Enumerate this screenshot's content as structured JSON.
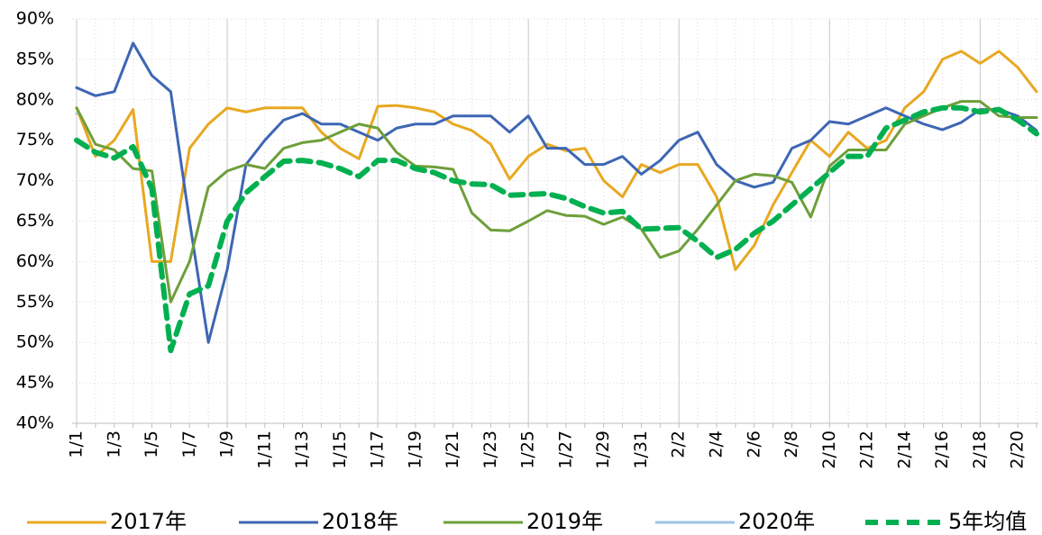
{
  "chart_data": {
    "type": "line",
    "categories": [
      "1/1",
      null,
      "1/3",
      null,
      "1/5",
      null,
      "1/7",
      null,
      "1/9",
      null,
      "1/11",
      null,
      "1/13",
      null,
      "1/15",
      null,
      "1/17",
      null,
      "1/19",
      null,
      "1/21",
      null,
      "1/23",
      null,
      "1/25",
      null,
      "1/27",
      null,
      "1/29",
      null,
      "1/31",
      null,
      "2/2",
      null,
      "2/4",
      null,
      "2/6",
      null,
      "2/8",
      null,
      "2/10",
      null,
      "2/12",
      null,
      "2/14",
      null,
      "2/16",
      null,
      "2/18",
      null,
      "2/20",
      null
    ],
    "series": [
      {
        "name": "2017年",
        "color": "#e8a820",
        "values": [
          79,
          73,
          75,
          78.8,
          60,
          60,
          74,
          77,
          79,
          78.5,
          79,
          79,
          79,
          76,
          74,
          72.7,
          79.2,
          79.3,
          79,
          78.5,
          77,
          76.2,
          74.5,
          70.2,
          73,
          74.5,
          73.7,
          74,
          70,
          68,
          72,
          71,
          72,
          72,
          68,
          59,
          62,
          67,
          71,
          75,
          73,
          76,
          74,
          75,
          79,
          81,
          85,
          86,
          84.5,
          86,
          84,
          81
        ]
      },
      {
        "name": "2018年",
        "color": "#3d66b4",
        "values": [
          81.5,
          80.5,
          81,
          87,
          83,
          81,
          65,
          50,
          59,
          72,
          75,
          77.5,
          78.3,
          77,
          77,
          76,
          75,
          76.5,
          77,
          77,
          78,
          78,
          78,
          76,
          78,
          74,
          74,
          72,
          72,
          73,
          70.8,
          72.5,
          75,
          76,
          72,
          70,
          69.2,
          69.8,
          74,
          75,
          77.3,
          77,
          78,
          79,
          78,
          77,
          76.3,
          77.2,
          78.8,
          78.8,
          78,
          76.2
        ]
      },
      {
        "name": "2019年",
        "color": "#6e9f3a",
        "values": [
          79,
          74.5,
          73.8,
          71.5,
          71.2,
          55,
          60,
          69.2,
          71.2,
          72,
          71.5,
          74,
          74.7,
          75,
          76,
          77,
          76.5,
          73.5,
          71.8,
          71.7,
          71.4,
          66,
          63.9,
          63.8,
          65,
          66.3,
          65.7,
          65.6,
          64.6,
          65.5,
          64,
          60.5,
          61.3,
          64,
          67,
          70,
          70.8,
          70.6,
          69.8,
          65.5,
          71.8,
          73.8,
          73.8,
          73.8,
          77,
          78,
          79,
          79.8,
          79.8,
          78,
          77.8,
          77.8
        ]
      },
      {
        "name": "2020年",
        "color": "#9dc3e6",
        "values": [
          78.3,
          null,
          null,
          null,
          null,
          null,
          null,
          null,
          null,
          null,
          null,
          null,
          null,
          null,
          null,
          null,
          null,
          null,
          null,
          null,
          null,
          null,
          null,
          null,
          null,
          null,
          null,
          null,
          null,
          null,
          null,
          null,
          null,
          null,
          null,
          null,
          null,
          null,
          null,
          null,
          null,
          null,
          null,
          null,
          null,
          null,
          null,
          null,
          null,
          null,
          null,
          null
        ]
      },
      {
        "name": "5年均值",
        "color": "#00b050",
        "dashed": true,
        "values": [
          75,
          73.5,
          72.8,
          74.2,
          69,
          49,
          56,
          57,
          65,
          68.5,
          70.5,
          72.4,
          72.5,
          72.2,
          71.5,
          70.5,
          72.5,
          72.5,
          71.5,
          71,
          70,
          69.6,
          69.5,
          68.2,
          68.3,
          68.4,
          67.8,
          66.8,
          66,
          66.2,
          64,
          64.1,
          64.2,
          62.5,
          60.5,
          61.5,
          63.5,
          65,
          67,
          69,
          71,
          73,
          73,
          76.5,
          77.5,
          78.5,
          79,
          79,
          78.5,
          78.8,
          77.5,
          75.8
        ]
      }
    ],
    "ylim": [
      40,
      90
    ],
    "yticks": [
      {
        "value": 40,
        "label": "40%"
      },
      {
        "value": 45,
        "label": "45%"
      },
      {
        "value": 50,
        "label": "50%"
      },
      {
        "value": 55,
        "label": "55%"
      },
      {
        "value": 60,
        "label": "60%"
      },
      {
        "value": 65,
        "label": "65%"
      },
      {
        "value": 70,
        "label": "70%"
      },
      {
        "value": 75,
        "label": "75%"
      },
      {
        "value": 80,
        "label": "80%"
      },
      {
        "value": 85,
        "label": "85%"
      },
      {
        "value": 90,
        "label": "90%"
      }
    ],
    "grid": true,
    "legend": "bottom"
  }
}
